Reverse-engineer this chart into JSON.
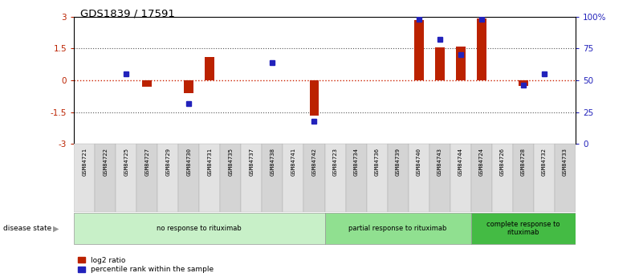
{
  "title": "GDS1839 / 17591",
  "samples": [
    "GSM84721",
    "GSM84722",
    "GSM84725",
    "GSM84727",
    "GSM84729",
    "GSM84730",
    "GSM84731",
    "GSM84735",
    "GSM84737",
    "GSM84738",
    "GSM84741",
    "GSM84742",
    "GSM84723",
    "GSM84734",
    "GSM84736",
    "GSM84739",
    "GSM84740",
    "GSM84743",
    "GSM84744",
    "GSM84724",
    "GSM84726",
    "GSM84728",
    "GSM84732",
    "GSM84733"
  ],
  "log2_ratio": [
    0,
    0,
    0,
    -0.3,
    0,
    -0.6,
    1.1,
    0,
    0,
    0,
    0,
    -1.65,
    0,
    0,
    0,
    0,
    2.85,
    1.55,
    1.6,
    2.9,
    0,
    -0.25,
    0,
    0
  ],
  "percentile_rank": [
    null,
    null,
    55,
    null,
    null,
    32,
    null,
    null,
    null,
    64,
    null,
    18,
    null,
    null,
    null,
    null,
    98,
    82,
    70,
    98,
    null,
    46,
    55,
    null
  ],
  "groups": [
    {
      "label": "no response to rituximab",
      "start": 0,
      "end": 12,
      "color": "#c8f0c8"
    },
    {
      "label": "partial response to rituximab",
      "start": 12,
      "end": 19,
      "color": "#90e090"
    },
    {
      "label": "complete response to\nrituximab",
      "start": 19,
      "end": 24,
      "color": "#44bb44"
    }
  ],
  "ylim": [
    -3,
    3
  ],
  "y_left_ticks": [
    -3,
    -1.5,
    0,
    1.5,
    3
  ],
  "y_left_labels": [
    "-3",
    "-1.5",
    "0",
    "1.5",
    "3"
  ],
  "y_right_ticks": [
    0,
    25,
    50,
    75,
    100
  ],
  "y_right_labels": [
    "0",
    "25",
    "50",
    "75",
    "100%"
  ],
  "bar_color_red": "#bb2200",
  "bar_color_blue": "#2222bb",
  "dotted_line_color_red": "#cc2200",
  "dotted_line_color_black": "#555555",
  "background_color": "#ffffff",
  "legend_red": "log2 ratio",
  "legend_blue": "percentile rank within the sample",
  "disease_state_label": "disease state"
}
